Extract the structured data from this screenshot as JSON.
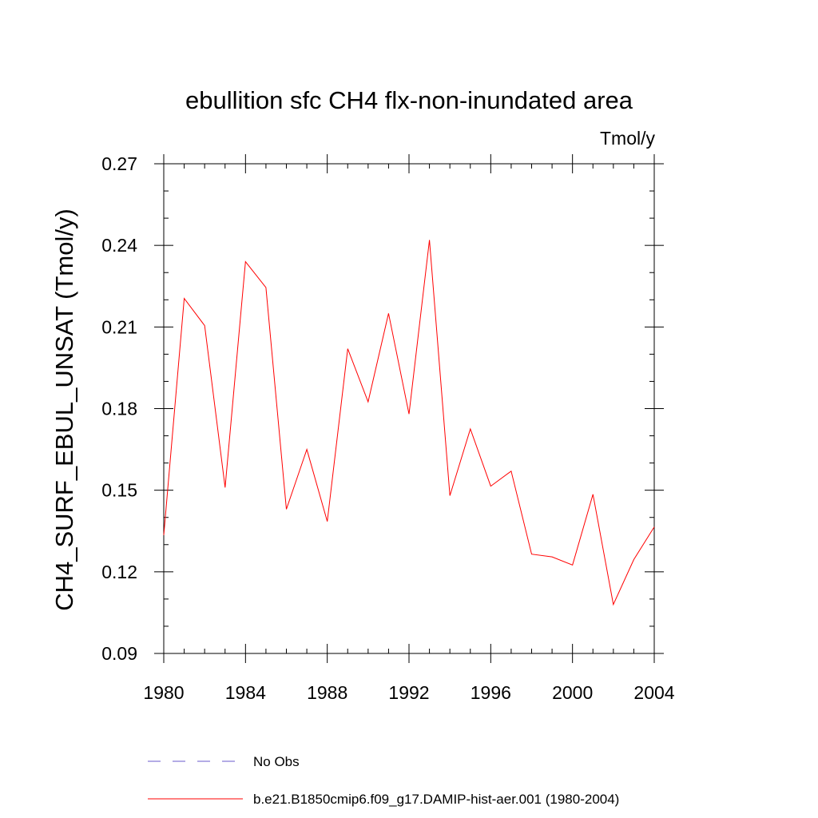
{
  "chart_data": {
    "type": "line",
    "title": "ebullition sfc CH4 flx-non-inundated area",
    "units": "Tmol/y",
    "ylabel": "CH4_SURF_EBUL_UNSAT  (Tmol/y)",
    "xlabel": "",
    "xlim": [
      1980,
      2004
    ],
    "ylim": [
      0.09,
      0.27
    ],
    "xticks": [
      "1980",
      "1984",
      "1988",
      "1992",
      "1996",
      "2000",
      "2004"
    ],
    "yticks": [
      "0.09",
      "0.12",
      "0.15",
      "0.18",
      "0.21",
      "0.24",
      "0.27"
    ],
    "grid": false,
    "series": [
      {
        "name": "b.e21.B1850cmip6.f09_g17.DAMIP-hist-aer.001 (1980-2004)",
        "color": "#ff0000",
        "style": "solid",
        "x": [
          1980,
          1981,
          1982,
          1983,
          1984,
          1985,
          1986,
          1987,
          1988,
          1989,
          1990,
          1991,
          1992,
          1993,
          1994,
          1995,
          1996,
          1997,
          1998,
          1999,
          2000,
          2001,
          2002,
          2003,
          2004
        ],
        "y": [
          0.1335,
          0.2205,
          0.2105,
          0.151,
          0.234,
          0.2245,
          0.143,
          0.165,
          0.1385,
          0.202,
          0.1825,
          0.215,
          0.178,
          0.242,
          0.148,
          0.1725,
          0.1515,
          0.157,
          0.1265,
          0.1255,
          0.1225,
          0.1485,
          0.108,
          0.1245,
          0.1365
        ]
      }
    ],
    "legend": {
      "placement": "bottom",
      "entries": [
        {
          "label": "No Obs",
          "color": "#6a5acd",
          "style": "dashed"
        },
        {
          "label": "b.e21.B1850cmip6.f09_g17.DAMIP-hist-aer.001 (1980-2004)",
          "color": "#ff0000",
          "style": "solid"
        }
      ]
    }
  }
}
